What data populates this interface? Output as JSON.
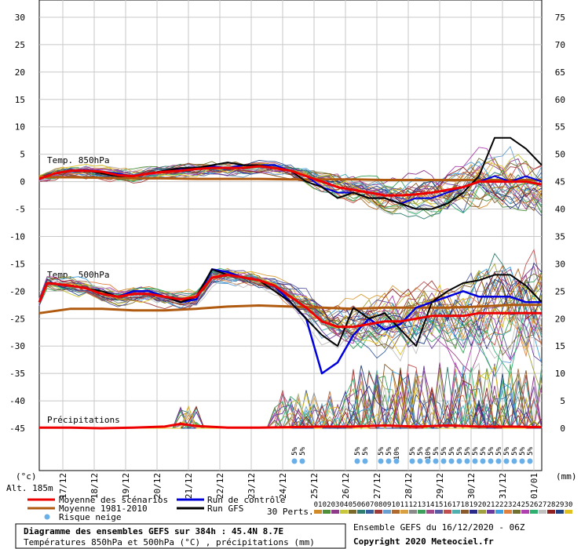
{
  "chart_data": {
    "type": "line",
    "left_axis": {
      "ticks": [
        30,
        25,
        20,
        15,
        10,
        5,
        0,
        -5,
        -10,
        -15,
        -20,
        -25,
        -30,
        -35,
        -40,
        -45
      ],
      "unit": "(°c)"
    },
    "right_axis": {
      "ticks": [
        75,
        70,
        65,
        60,
        55,
        50,
        45,
        40,
        35,
        30,
        25,
        20,
        15,
        10,
        5,
        0
      ],
      "unit": "(mm)"
    },
    "x_range_days": [
      16.25,
      32.25
    ],
    "dates": [
      "17/12",
      "18/12",
      "19/12",
      "20/12",
      "21/12",
      "22/12",
      "23/12",
      "24/12",
      "25/12",
      "26/12",
      "27/12",
      "28/12",
      "29/12",
      "30/12",
      "31/12",
      "01/01"
    ],
    "altitude_label": "Alt. 185m",
    "panel_labels": {
      "t850": "Temp. 850hPa",
      "t500": "Temp. 500hPa",
      "precip": "Précipitations"
    },
    "series": [
      {
        "name": "t850_mean",
        "x": [
          16.25,
          16.75,
          17.25,
          17.75,
          18.25,
          18.75,
          19.25,
          19.75,
          20.25,
          20.75,
          21.25,
          21.75,
          22.25,
          22.75,
          23.25,
          23.75,
          24.25,
          24.75,
          25.25,
          25.75,
          26.25,
          26.75,
          27.25,
          27.75,
          28.25,
          28.75,
          29.25,
          29.75,
          30.25,
          30.75,
          31.25,
          31.75,
          32.25
        ],
        "y": [
          0.5,
          1.5,
          2,
          2,
          1.8,
          1.2,
          1,
          1.5,
          1.8,
          2,
          2.3,
          2.5,
          2.5,
          2.5,
          2.8,
          2.5,
          2,
          1,
          0,
          -1,
          -1.5,
          -2,
          -2.5,
          -2.5,
          -2.3,
          -2,
          -1.5,
          -1,
          0,
          0,
          0,
          0,
          -0.5
        ]
      },
      {
        "name": "t850_clim",
        "x": [
          16.25,
          17.25,
          18.25,
          19.25,
          20.25,
          21.25,
          22.25,
          23.25,
          24.25,
          25.25,
          26.25,
          27.25,
          28.25,
          29.25,
          30.25,
          31.25,
          32.25
        ],
        "y": [
          0.8,
          0.8,
          0.7,
          0.6,
          0.6,
          0.5,
          0.5,
          0.5,
          0.4,
          0.4,
          0.4,
          0.3,
          0.3,
          0.3,
          0.3,
          0.3,
          0.3
        ]
      },
      {
        "name": "t850_control",
        "x": [
          16.25,
          16.75,
          17.25,
          17.75,
          18.25,
          18.75,
          19.25,
          19.75,
          20.25,
          20.75,
          21.25,
          21.75,
          22.25,
          22.75,
          23.25,
          23.75,
          24.25,
          24.75,
          25.25,
          25.75,
          26.25,
          26.75,
          27.25,
          27.75,
          28.25,
          28.75,
          29.25,
          29.75,
          30.25,
          30.75,
          31.25,
          31.75,
          32.25
        ],
        "y": [
          0.5,
          1.5,
          2,
          2.2,
          1.8,
          1.5,
          1,
          1.5,
          2,
          2.2,
          2.5,
          2.8,
          2.5,
          3,
          3,
          3,
          2,
          1,
          -1,
          -2,
          -2,
          -3,
          -3,
          -4,
          -3,
          -3,
          -2,
          -1,
          0,
          1,
          0,
          1,
          0
        ]
      },
      {
        "name": "t850_gfs",
        "x": [
          16.25,
          16.75,
          17.25,
          17.75,
          18.25,
          18.75,
          19.25,
          19.75,
          20.25,
          20.75,
          21.25,
          21.75,
          22.25,
          22.75,
          23.25,
          23.75,
          24.25,
          24.75,
          25.25,
          25.75,
          26.25,
          26.75,
          27.25,
          27.75,
          28.25,
          28.75,
          29.25,
          29.75,
          30.25,
          30.75,
          31.25,
          31.75,
          32.25
        ],
        "y": [
          0.5,
          1.5,
          2,
          2,
          1.5,
          1,
          1,
          1.5,
          2,
          2.5,
          2.5,
          3,
          3.5,
          3,
          3,
          2.5,
          2,
          0,
          -1,
          -3,
          -2,
          -3,
          -3,
          -4,
          -5,
          -5,
          -4,
          -2,
          1,
          8,
          8,
          6,
          3
        ]
      },
      {
        "name": "t500_mean",
        "x": [
          16.25,
          16.5,
          17.25,
          17.75,
          18.25,
          18.75,
          19.25,
          19.75,
          20.25,
          20.75,
          21.25,
          21.75,
          22.25,
          22.75,
          23.25,
          23.75,
          24.25,
          24.75,
          25.25,
          25.75,
          26.25,
          26.75,
          27.25,
          27.75,
          28.25,
          28.75,
          29.25,
          29.75,
          30.25,
          30.75,
          31.25,
          31.75,
          32.25
        ],
        "y": [
          -22,
          -18.5,
          -19,
          -19.5,
          -20.5,
          -21,
          -20.5,
          -20.5,
          -21,
          -21.5,
          -21,
          -17.5,
          -17,
          -17.5,
          -18,
          -19,
          -21,
          -23,
          -25.5,
          -26.5,
          -26.5,
          -26,
          -25.5,
          -25.5,
          -25,
          -24.5,
          -24.5,
          -24.5,
          -24,
          -24,
          -24,
          -24,
          -24
        ]
      },
      {
        "name": "t500_clim",
        "x": [
          16.25,
          17.25,
          18.25,
          19.25,
          20.25,
          21.25,
          22.25,
          23.25,
          24.25,
          25.25,
          26.25,
          27.25,
          28.25,
          29.25,
          30.25,
          31.25,
          32.25
        ],
        "y": [
          -24,
          -23.2,
          -23.2,
          -23.5,
          -23.5,
          -23.2,
          -22.8,
          -22.6,
          -22.8,
          -23,
          -23.2,
          -23,
          -23,
          -23,
          -22.8,
          -22.5,
          -22.5
        ]
      },
      {
        "name": "t500_control",
        "x": [
          16.25,
          16.5,
          17.25,
          17.75,
          18.25,
          18.75,
          19.25,
          19.75,
          20.25,
          20.75,
          21.25,
          21.75,
          22.25,
          22.75,
          23.25,
          23.75,
          24.25,
          24.75,
          25.25,
          25.5,
          25.75,
          26.25,
          26.75,
          27.25,
          27.75,
          28.25,
          28.75,
          29.25,
          29.75,
          30.25,
          30.75,
          31.25,
          31.75,
          32.25
        ],
        "y": [
          -22,
          -18.5,
          -19,
          -19.5,
          -20.5,
          -21,
          -20,
          -20,
          -21,
          -22,
          -21.5,
          -16,
          -16.5,
          -17.5,
          -18,
          -19,
          -22,
          -25,
          -35,
          -34,
          -33,
          -28,
          -25,
          -27,
          -26,
          -23,
          -22,
          -21,
          -20,
          -21,
          -21,
          -21,
          -22,
          -22
        ]
      },
      {
        "name": "t500_gfs",
        "x": [
          16.25,
          16.5,
          17.25,
          17.75,
          18.25,
          18.75,
          19.25,
          19.75,
          20.25,
          20.75,
          21.25,
          21.75,
          22.25,
          22.75,
          23.25,
          23.75,
          24.25,
          24.75,
          25.25,
          25.75,
          26.25,
          26.75,
          27.25,
          27.75,
          28.25,
          28.75,
          29.25,
          29.75,
          30.25,
          30.75,
          31.25,
          31.75,
          32.25
        ],
        "y": [
          -22,
          -18.5,
          -19,
          -19.5,
          -20,
          -21,
          -20.5,
          -20.5,
          -21,
          -22,
          -21,
          -16,
          -17,
          -17.5,
          -18,
          -20,
          -22,
          -25,
          -28,
          -30,
          -23,
          -25,
          -24,
          -27,
          -30,
          -22,
          -20,
          -18.5,
          -18,
          -17,
          -17,
          -19,
          -22
        ]
      },
      {
        "name": "precip_mean",
        "x": [
          16.25,
          17.25,
          18.25,
          19.25,
          20.25,
          20.75,
          21.25,
          22.25,
          23.25,
          24.25,
          25.25,
          26.25,
          27.25,
          28.25,
          29.25,
          30.25,
          31.25,
          32.25
        ],
        "y": [
          0.1,
          0.1,
          0,
          0.1,
          0.3,
          0.8,
          0.4,
          0.1,
          0.1,
          0.2,
          0.3,
          0.3,
          0.5,
          0.3,
          0.5,
          0.3,
          0.3,
          0.2
        ]
      }
    ],
    "snow_risk_days": [
      24.375,
      24.625,
      26.375,
      26.625,
      27.125,
      27.375,
      27.625,
      28.125,
      28.375,
      28.625,
      28.875,
      29.125,
      29.375,
      29.625,
      29.875,
      30.125,
      30.375,
      30.625,
      30.875,
      31.125,
      31.375,
      31.625,
      31.875
    ],
    "snow_risk_label": "5%",
    "snow_risk_label_alt": "10%",
    "snow_risk_alt_days": [
      27.625,
      28.625
    ],
    "legend": {
      "mean": "Moyenne des scénarios",
      "clim": "Moyenne 1981-2010",
      "snow": "Risque neige",
      "control": "Run de contrôle",
      "gfs": "Run GFS"
    },
    "perts_label": "30 Perts.",
    "pert_numbers": [
      "01",
      "02",
      "03",
      "04",
      "05",
      "06",
      "07",
      "08",
      "09",
      "10",
      "11",
      "12",
      "13",
      "14",
      "15",
      "16",
      "17",
      "18",
      "19",
      "20",
      "21",
      "22",
      "23",
      "24",
      "25",
      "26",
      "27",
      "28",
      "29",
      "30"
    ],
    "pert_colors": [
      "#d08a2a",
      "#4f8f3a",
      "#8f3a8a",
      "#c8c63b",
      "#7a6a2a",
      "#2e7d6e",
      "#3a5f9f",
      "#9f3a3a",
      "#6aa0d0",
      "#b06a30",
      "#d8a040",
      "#8a8a8a",
      "#3aa05a",
      "#a04a8a",
      "#5a5aa0",
      "#c05050",
      "#50b0b0",
      "#8a5a2a",
      "#2a2a8a",
      "#a0a040",
      "#6a3a9f",
      "#40a0e0",
      "#e08040",
      "#707030",
      "#b040b0",
      "#30b070",
      "#c0c0c0",
      "#902020",
      "#204080",
      "#e0c020"
    ],
    "footer": {
      "title": "Diagramme des ensembles GEFS sur 384h : 45.4N 8.7E",
      "subtitle": "Températures 850hPa et 500hPa (°C) , précipitations (mm)",
      "run": "Ensemble GEFS du 16/12/2020 - 06Z",
      "copyright": "Copyright 2020 Meteociel.fr"
    },
    "colors": {
      "mean": "#ee0000",
      "clim": "#b05a10",
      "control": "#0000dd",
      "gfs": "#000000",
      "snow": "#6ab0e8"
    }
  }
}
